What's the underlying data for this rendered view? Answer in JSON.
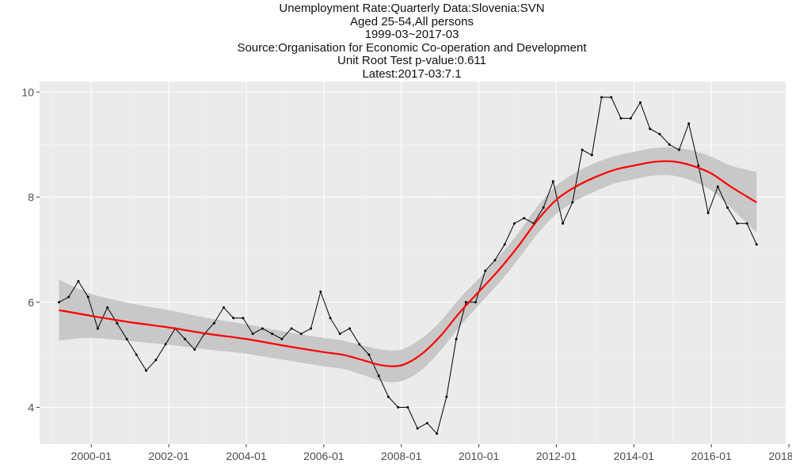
{
  "chart_data": {
    "type": "line",
    "title_lines": [
      "Unemployment Rate:Quarterly Data:Slovenia:SVN",
      "Aged 25-54,All persons",
      "1999-03~2017-03",
      "Source:Organisation for Economic Co-operation and Development",
      "Unit Root Test p-value:0.611",
      "Latest:2017-03:7.1"
    ],
    "xlabel": "",
    "ylabel": "",
    "x_ticks": [
      "2000-01",
      "2002-01",
      "2004-01",
      "2006-01",
      "2008-01",
      "2010-01",
      "2012-01",
      "2014-01",
      "2016-01",
      "2018-01"
    ],
    "y_ticks": [
      4,
      6,
      8,
      10
    ],
    "xlim": [
      "1998-09",
      "2017-12"
    ],
    "ylim": [
      3.3,
      10.2
    ],
    "grid": true,
    "legend": "none",
    "series": [
      {
        "style": "line-with-points",
        "color": "#000000",
        "points": [
          [
            "1999-03",
            6.0
          ],
          [
            "1999-06",
            6.1
          ],
          [
            "1999-09",
            6.4
          ],
          [
            "1999-12",
            6.1
          ],
          [
            "2000-03",
            5.5
          ],
          [
            "2000-06",
            5.9
          ],
          [
            "2000-09",
            5.6
          ],
          [
            "2000-12",
            5.3
          ],
          [
            "2001-03",
            5.0
          ],
          [
            "2001-06",
            4.7
          ],
          [
            "2001-09",
            4.9
          ],
          [
            "2001-12",
            5.2
          ],
          [
            "2002-03",
            5.5
          ],
          [
            "2002-06",
            5.3
          ],
          [
            "2002-09",
            5.1
          ],
          [
            "2002-12",
            5.4
          ],
          [
            "2003-03",
            5.6
          ],
          [
            "2003-06",
            5.9
          ],
          [
            "2003-09",
            5.7
          ],
          [
            "2003-12",
            5.7
          ],
          [
            "2004-03",
            5.4
          ],
          [
            "2004-06",
            5.5
          ],
          [
            "2004-09",
            5.4
          ],
          [
            "2004-12",
            5.3
          ],
          [
            "2005-03",
            5.5
          ],
          [
            "2005-06",
            5.4
          ],
          [
            "2005-09",
            5.5
          ],
          [
            "2005-12",
            6.2
          ],
          [
            "2006-03",
            5.7
          ],
          [
            "2006-06",
            5.4
          ],
          [
            "2006-09",
            5.5
          ],
          [
            "2006-12",
            5.2
          ],
          [
            "2007-03",
            5.0
          ],
          [
            "2007-06",
            4.6
          ],
          [
            "2007-09",
            4.2
          ],
          [
            "2007-12",
            4.0
          ],
          [
            "2008-03",
            4.0
          ],
          [
            "2008-06",
            3.6
          ],
          [
            "2008-09",
            3.7
          ],
          [
            "2008-12",
            3.5
          ],
          [
            "2009-03",
            4.2
          ],
          [
            "2009-06",
            5.3
          ],
          [
            "2009-09",
            6.0
          ],
          [
            "2009-12",
            6.0
          ],
          [
            "2010-03",
            6.6
          ],
          [
            "2010-06",
            6.8
          ],
          [
            "2010-09",
            7.1
          ],
          [
            "2010-12",
            7.5
          ],
          [
            "2011-03",
            7.6
          ],
          [
            "2011-06",
            7.5
          ],
          [
            "2011-09",
            7.8
          ],
          [
            "2011-12",
            8.3
          ],
          [
            "2012-03",
            7.5
          ],
          [
            "2012-06",
            7.9
          ],
          [
            "2012-09",
            8.9
          ],
          [
            "2012-12",
            8.8
          ],
          [
            "2013-03",
            9.9
          ],
          [
            "2013-06",
            9.9
          ],
          [
            "2013-09",
            9.5
          ],
          [
            "2013-12",
            9.5
          ],
          [
            "2014-03",
            9.8
          ],
          [
            "2014-06",
            9.3
          ],
          [
            "2014-09",
            9.2
          ],
          [
            "2014-12",
            9.0
          ],
          [
            "2015-03",
            8.9
          ],
          [
            "2015-06",
            9.4
          ],
          [
            "2015-09",
            8.6
          ],
          [
            "2015-12",
            7.7
          ],
          [
            "2016-03",
            8.2
          ],
          [
            "2016-06",
            7.8
          ],
          [
            "2016-09",
            7.5
          ],
          [
            "2016-12",
            7.5
          ],
          [
            "2017-03",
            7.1
          ]
        ]
      },
      {
        "style": "smooth-with-band",
        "color": "#ff0000",
        "band_color": "#c8c8c8",
        "points": [
          [
            "1999-03",
            5.85
          ],
          [
            "2000-01",
            5.74
          ],
          [
            "2001-01",
            5.62
          ],
          [
            "2002-01",
            5.52
          ],
          [
            "2003-01",
            5.4
          ],
          [
            "2004-01",
            5.3
          ],
          [
            "2005-01",
            5.17
          ],
          [
            "2006-01",
            5.05
          ],
          [
            "2006-07",
            5.0
          ],
          [
            "2007-01",
            4.9
          ],
          [
            "2007-07",
            4.8
          ],
          [
            "2008-01",
            4.8
          ],
          [
            "2008-07",
            5.0
          ],
          [
            "2009-01",
            5.35
          ],
          [
            "2009-07",
            5.8
          ],
          [
            "2010-01",
            6.2
          ],
          [
            "2010-07",
            6.6
          ],
          [
            "2011-01",
            7.05
          ],
          [
            "2011-07",
            7.55
          ],
          [
            "2012-01",
            7.95
          ],
          [
            "2012-07",
            8.2
          ],
          [
            "2013-01",
            8.38
          ],
          [
            "2013-07",
            8.52
          ],
          [
            "2014-01",
            8.6
          ],
          [
            "2014-07",
            8.67
          ],
          [
            "2015-01",
            8.68
          ],
          [
            "2015-07",
            8.6
          ],
          [
            "2016-01",
            8.45
          ],
          [
            "2016-07",
            8.2
          ],
          [
            "2017-03",
            7.9
          ]
        ],
        "band_halfwidth": [
          0.58,
          0.42,
          0.36,
          0.33,
          0.3,
          0.28,
          0.27,
          0.27,
          0.27,
          0.28,
          0.3,
          0.3,
          0.3,
          0.28,
          0.27,
          0.25,
          0.25,
          0.25,
          0.26,
          0.27,
          0.27,
          0.27,
          0.26,
          0.26,
          0.26,
          0.27,
          0.29,
          0.32,
          0.4,
          0.58
        ]
      }
    ]
  }
}
